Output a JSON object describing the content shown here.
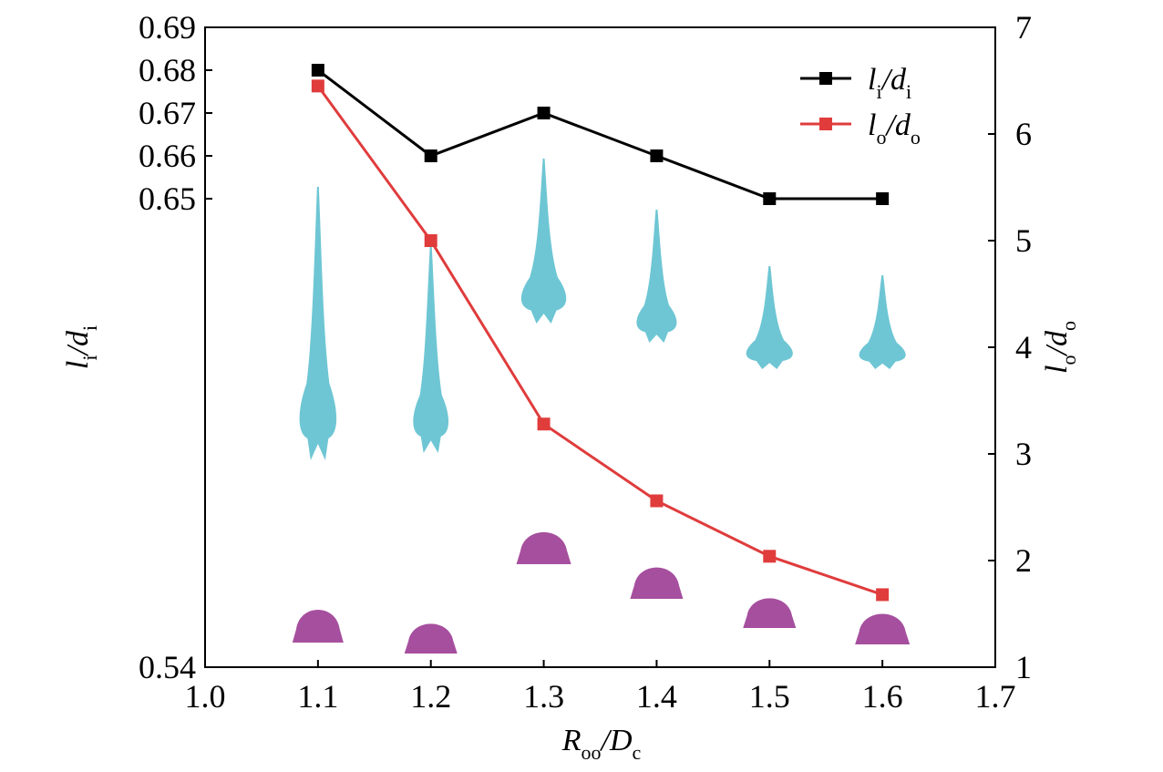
{
  "chart_data": {
    "type": "line",
    "xlabel": {
      "main": "R",
      "sub1": "oo",
      "sep": "/",
      "main2": "D",
      "sub2": "c"
    },
    "ylabel_left": {
      "main": "l",
      "sub1": "i",
      "sep": "/",
      "main2": "d",
      "sub2": "i"
    },
    "ylabel_right": {
      "main": "l",
      "sub1": "o",
      "sep": "/",
      "main2": "d",
      "sub2": "o"
    },
    "xlim": [
      1.0,
      1.7
    ],
    "ylim_left": [
      0.54,
      0.69
    ],
    "ylim_right": [
      1,
      7
    ],
    "x_ticks": [
      "1.0",
      "1.1",
      "1.2",
      "1.3",
      "1.4",
      "1.5",
      "1.6",
      "1.7"
    ],
    "y_left_ticks": [
      "0.54",
      "0.65",
      "0.66",
      "0.67",
      "0.68",
      "0.69"
    ],
    "y_right_ticks": [
      "1",
      "2",
      "3",
      "4",
      "5",
      "6",
      "7"
    ],
    "x": [
      1.1,
      1.2,
      1.3,
      1.4,
      1.5,
      1.6
    ],
    "series": [
      {
        "name": "li/di",
        "label_main": "l",
        "label_sub1": "i",
        "label_main2": "d",
        "label_sub2": "i",
        "axis": "left",
        "color": "#000000",
        "values": [
          0.68,
          0.66,
          0.67,
          0.66,
          0.65,
          0.65
        ]
      },
      {
        "name": "lo/do",
        "label_main": "l",
        "label_sub1": "o",
        "label_main2": "d",
        "label_sub2": "o",
        "axis": "right",
        "color": "#e03c3c",
        "values": [
          6.45,
          5.0,
          3.28,
          2.56,
          2.04,
          1.68
        ]
      }
    ],
    "legend_position": "top-right",
    "inset_colors": {
      "inner": "#6ec6d4",
      "outer": "#a64f9e"
    },
    "inset_x": [
      1.1,
      1.2,
      1.3,
      1.4,
      1.5,
      1.6
    ]
  }
}
